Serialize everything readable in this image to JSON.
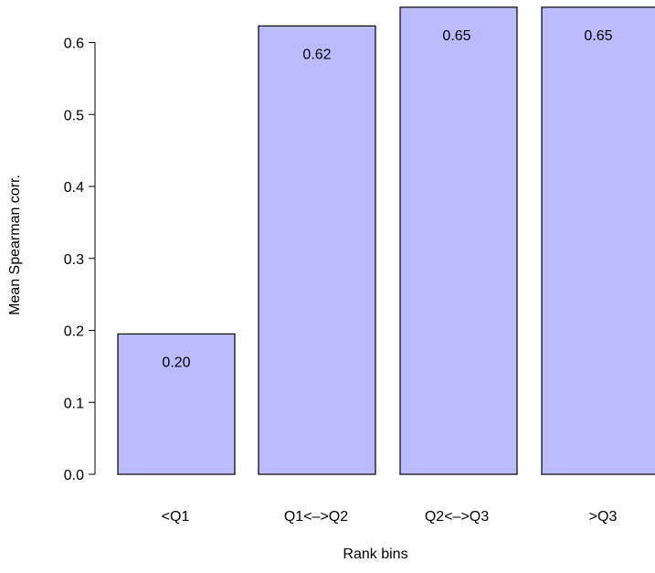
{
  "chart_data": {
    "type": "bar",
    "categories": [
      "<Q1",
      "Q1<–>Q2",
      "Q2<–>Q3",
      ">Q3"
    ],
    "values": [
      0.195,
      0.623,
      0.649,
      0.649
    ],
    "value_labels": [
      "0.20",
      "0.62",
      "0.65",
      "0.65"
    ],
    "xlabel": "Rank bins",
    "ylabel": "Mean Spearman corr.",
    "ylim": [
      0.0,
      0.65
    ],
    "yticks": [
      0.0,
      0.1,
      0.2,
      0.3,
      0.4,
      0.5,
      0.6
    ],
    "ytick_labels": [
      "0.0",
      "0.1",
      "0.2",
      "0.3",
      "0.4",
      "0.5",
      "0.6"
    ],
    "bar_color": "#bbbbff",
    "bar_edge_color": "#000000",
    "grid": false,
    "legend": "none"
  }
}
